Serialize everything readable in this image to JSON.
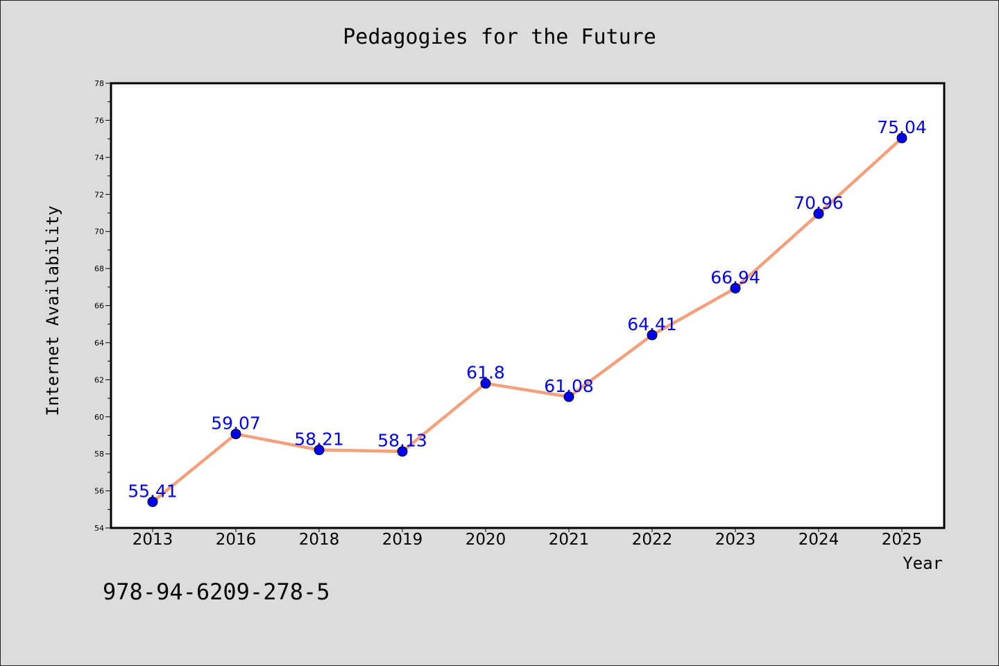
{
  "chart_data": {
    "type": "line",
    "title": "Pedagogies for the Future",
    "xlabel": "Year",
    "ylabel": "Internet Availability",
    "categories": [
      "2013",
      "2016",
      "2018",
      "2019",
      "2020",
      "2021",
      "2022",
      "2023",
      "2024",
      "2025"
    ],
    "series": [
      {
        "values": [
          55.41,
          59.07,
          58.21,
          58.13,
          61.8,
          61.08,
          64.41,
          66.94,
          70.96,
          75.04
        ]
      }
    ],
    "data_labels": [
      "55.41",
      "59.07",
      "58.21",
      "58.13",
      "61.8",
      "61.08",
      "64.41",
      "66.94",
      "70.96",
      "75.04"
    ],
    "ylim": [
      54,
      78
    ],
    "y_major_step": 2,
    "y_minor_step": 1,
    "grid": false,
    "line_color": "#f4a07c",
    "marker_color": "#0000ee",
    "label_color": "#0000ee",
    "background_color": "#dcdcdc",
    "plot_background": "#ffffff"
  },
  "footnote": "978-94-6209-278-5"
}
